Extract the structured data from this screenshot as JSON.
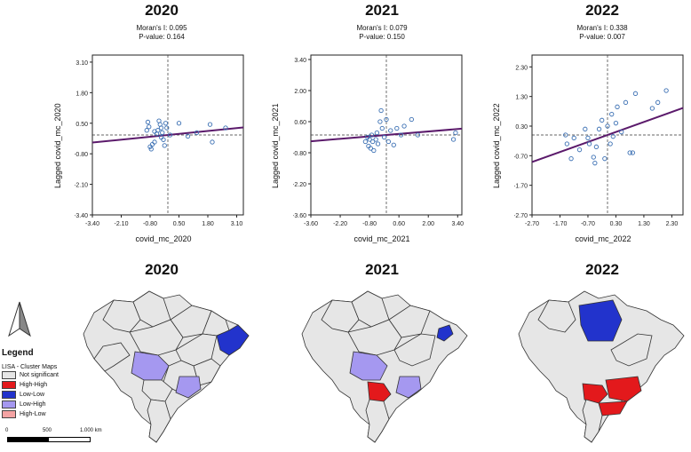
{
  "chart_data": [
    {
      "type": "scatter",
      "title": "2020",
      "morans_i": "Moran's I: 0.095",
      "p_value": "P-value: 0.164",
      "xlabel": "covid_mc_2020",
      "ylabel": "Lagged covid_mc_2020",
      "xlim": [
        -3.4,
        3.4
      ],
      "ylim": [
        -3.4,
        3.4
      ],
      "xticks": [
        "-3.40",
        "-2.10",
        "-0.80",
        "0.50",
        "1.80",
        "3.10"
      ],
      "yticks": [
        "3.10",
        "1.80",
        "0.50",
        "-0.80",
        "-2.10",
        "-3.40"
      ],
      "xtick_values": [
        -3.4,
        -2.1,
        -0.8,
        0.5,
        1.8,
        3.1
      ],
      "ytick_values": [
        3.1,
        1.8,
        0.5,
        -0.8,
        -2.1,
        -3.4
      ],
      "slope": 0.095,
      "intercept": 0.0,
      "mean_x": 0.0,
      "mean_y": 0.0,
      "points": [
        [
          -0.95,
          0.2
        ],
        [
          -0.9,
          0.55
        ],
        [
          -0.85,
          0.35
        ],
        [
          -0.8,
          -0.5
        ],
        [
          -0.75,
          -0.6
        ],
        [
          -0.7,
          -0.4
        ],
        [
          -0.6,
          -0.3
        ],
        [
          -0.5,
          0.05
        ],
        [
          -0.45,
          0.2
        ],
        [
          -0.4,
          0.6
        ],
        [
          -0.35,
          0.45
        ],
        [
          -0.3,
          0.3
        ],
        [
          -0.25,
          0.1
        ],
        [
          -0.2,
          -0.2
        ],
        [
          -0.15,
          -0.45
        ],
        [
          -0.1,
          0.5
        ],
        [
          -0.05,
          0.3
        ],
        [
          0.1,
          0.0
        ],
        [
          -0.3,
          -0.1
        ],
        [
          -0.6,
          0.15
        ],
        [
          0.5,
          0.5
        ],
        [
          0.9,
          -0.05
        ],
        [
          1.3,
          0.1
        ],
        [
          1.9,
          0.45
        ],
        [
          2.6,
          0.3
        ],
        [
          2.0,
          -0.3
        ]
      ]
    },
    {
      "type": "scatter",
      "title": "2021",
      "morans_i": "Moran's I: 0.079",
      "p_value": "P-value: 0.150",
      "xlabel": "covid_mc_2021",
      "ylabel": "Lagged covid_mc_2021",
      "xlim": [
        -3.6,
        3.6
      ],
      "ylim": [
        -3.6,
        3.6
      ],
      "xticks": [
        "-3.60",
        "-2.20",
        "-0.80",
        "0.60",
        "2.00",
        "3.40"
      ],
      "yticks": [
        "3.40",
        "2.00",
        "0.60",
        "-0.80",
        "-2.20",
        "-3.60"
      ],
      "xtick_values": [
        -3.6,
        -2.2,
        -0.8,
        0.6,
        2.0,
        3.4
      ],
      "ytick_values": [
        3.4,
        2.0,
        0.6,
        -0.8,
        -2.2,
        -3.6
      ],
      "slope": 0.079,
      "intercept": 0.0,
      "mean_x": 0.0,
      "mean_y": 0.0,
      "points": [
        [
          -1.0,
          -0.3
        ],
        [
          -0.9,
          -0.1
        ],
        [
          -0.85,
          -0.5
        ],
        [
          -0.8,
          -0.2
        ],
        [
          -0.75,
          -0.6
        ],
        [
          -0.7,
          0.0
        ],
        [
          -0.65,
          -0.3
        ],
        [
          -0.6,
          -0.7
        ],
        [
          -0.5,
          -0.2
        ],
        [
          -0.45,
          0.1
        ],
        [
          -0.4,
          -0.4
        ],
        [
          -0.3,
          0.6
        ],
        [
          -0.25,
          1.1
        ],
        [
          -0.2,
          0.3
        ],
        [
          -0.1,
          -0.1
        ],
        [
          0.0,
          0.7
        ],
        [
          0.1,
          -0.3
        ],
        [
          0.2,
          0.2
        ],
        [
          0.35,
          -0.45
        ],
        [
          0.5,
          0.3
        ],
        [
          0.7,
          0.0
        ],
        [
          0.85,
          0.4
        ],
        [
          1.2,
          0.7
        ],
        [
          1.5,
          0.0
        ],
        [
          3.2,
          -0.2
        ],
        [
          3.3,
          0.1
        ]
      ]
    },
    {
      "type": "scatter",
      "title": "2022",
      "morans_i": "Moran's I: 0.338",
      "p_value": "P-value: 0.007",
      "xlabel": "covid_mc_2022",
      "ylabel": "Lagged covid_mc_2022",
      "xlim": [
        -2.7,
        2.7
      ],
      "ylim": [
        -2.7,
        2.7
      ],
      "xticks": [
        "-2.70",
        "-1.70",
        "-0.70",
        "0.30",
        "1.30",
        "2.30"
      ],
      "yticks": [
        "2.30",
        "1.30",
        "0.30",
        "-0.70",
        "-1.70",
        "-2.70"
      ],
      "xtick_values": [
        -2.7,
        -1.7,
        -0.7,
        0.3,
        1.3,
        2.3
      ],
      "ytick_values": [
        2.3,
        1.3,
        0.3,
        -0.7,
        -1.7,
        -2.7
      ],
      "slope": 0.338,
      "intercept": 0.0,
      "mean_x": 0.0,
      "mean_y": 0.0,
      "points": [
        [
          -1.5,
          0.0
        ],
        [
          -1.45,
          -0.3
        ],
        [
          -1.3,
          -0.8
        ],
        [
          -1.2,
          -0.1
        ],
        [
          -1.0,
          -0.5
        ],
        [
          -0.8,
          0.2
        ],
        [
          -0.7,
          -0.1
        ],
        [
          -0.65,
          -0.3
        ],
        [
          -0.5,
          -0.75
        ],
        [
          -0.45,
          -0.95
        ],
        [
          -0.4,
          -0.4
        ],
        [
          -0.3,
          0.2
        ],
        [
          -0.2,
          0.5
        ],
        [
          -0.1,
          -0.8
        ],
        [
          0.0,
          0.3
        ],
        [
          0.1,
          -0.3
        ],
        [
          0.15,
          0.7
        ],
        [
          0.2,
          -0.05
        ],
        [
          0.3,
          0.4
        ],
        [
          0.35,
          0.95
        ],
        [
          0.5,
          0.1
        ],
        [
          0.65,
          1.1
        ],
        [
          0.8,
          -0.6
        ],
        [
          0.9,
          -0.6
        ],
        [
          1.0,
          1.4
        ],
        [
          1.6,
          0.9
        ],
        [
          1.8,
          1.1
        ],
        [
          2.1,
          1.5
        ]
      ]
    }
  ],
  "maps": {
    "titles": [
      "2020",
      "2021",
      "2022"
    ]
  },
  "legend": {
    "title": "Legend",
    "subtitle": "LISA - Cluster Maps",
    "items": [
      {
        "label": "Not significant",
        "color": "#e6e6e6"
      },
      {
        "label": "High-High",
        "color": "#e3191c"
      },
      {
        "label": "Low-Low",
        "color": "#2233cc"
      },
      {
        "label": "Low-High",
        "color": "#a598f0"
      },
      {
        "label": "High-Low",
        "color": "#f4a3a3"
      }
    ],
    "scale_labels": [
      "0",
      "500",
      "1.000 km"
    ]
  },
  "colors": {
    "point": "#3a6fb3",
    "regression": "#5b1a6b"
  }
}
